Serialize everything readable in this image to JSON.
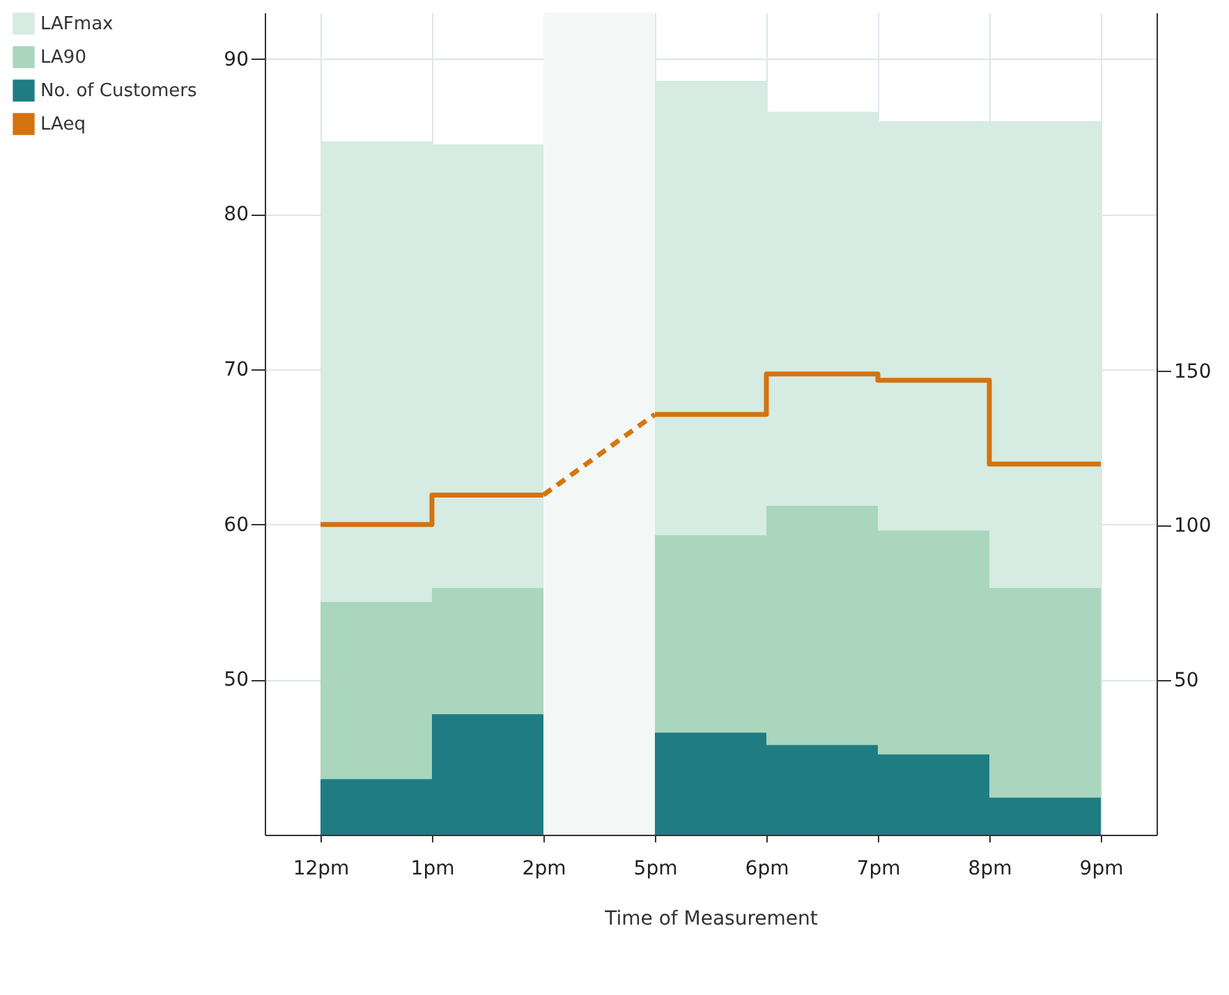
{
  "chart_data": {
    "type": "step",
    "xlabel": "Time of Measurement",
    "categories": [
      "12pm",
      "1pm",
      "2pm",
      "5pm",
      "6pm",
      "7pm",
      "8pm",
      "9pm"
    ],
    "series": [
      {
        "name": "LAFmax",
        "type": "area",
        "color": "#d6ebe1",
        "values": [
          84.7,
          84.5,
          null,
          88.6,
          86.6,
          86.0,
          86.0,
          86.0
        ]
      },
      {
        "name": "LA90",
        "type": "area",
        "color": "#a9d6bd",
        "values": [
          55.0,
          55.9,
          null,
          59.3,
          61.2,
          59.6,
          55.9,
          55.9
        ]
      },
      {
        "name": "No. of Customers",
        "type": "area",
        "axis": "y2",
        "color": "#1f7c83",
        "values": [
          18,
          39,
          null,
          33,
          29,
          26,
          12,
          12
        ]
      },
      {
        "name": "LAeq",
        "type": "step",
        "color": "#d4730f",
        "values": [
          60.0,
          61.9,
          null,
          67.1,
          69.7,
          69.3,
          63.9,
          63.9
        ]
      },
      {
        "type": "line",
        "line_style": "dashed",
        "color": "#d6760f",
        "values": [
          null,
          null,
          61.9,
          67.1,
          null,
          null,
          null,
          null
        ]
      }
    ],
    "bands": [
      {
        "axis": "x",
        "from": "2pm",
        "to": "5pm",
        "color": "#f3f8f6"
      }
    ],
    "ylim": [
      40,
      93
    ],
    "yticks": [
      50,
      60,
      70,
      80,
      90
    ],
    "y2lim": [
      0,
      266
    ],
    "y2ticks": [
      50,
      100,
      150
    ],
    "grid": true,
    "legend": "left"
  }
}
